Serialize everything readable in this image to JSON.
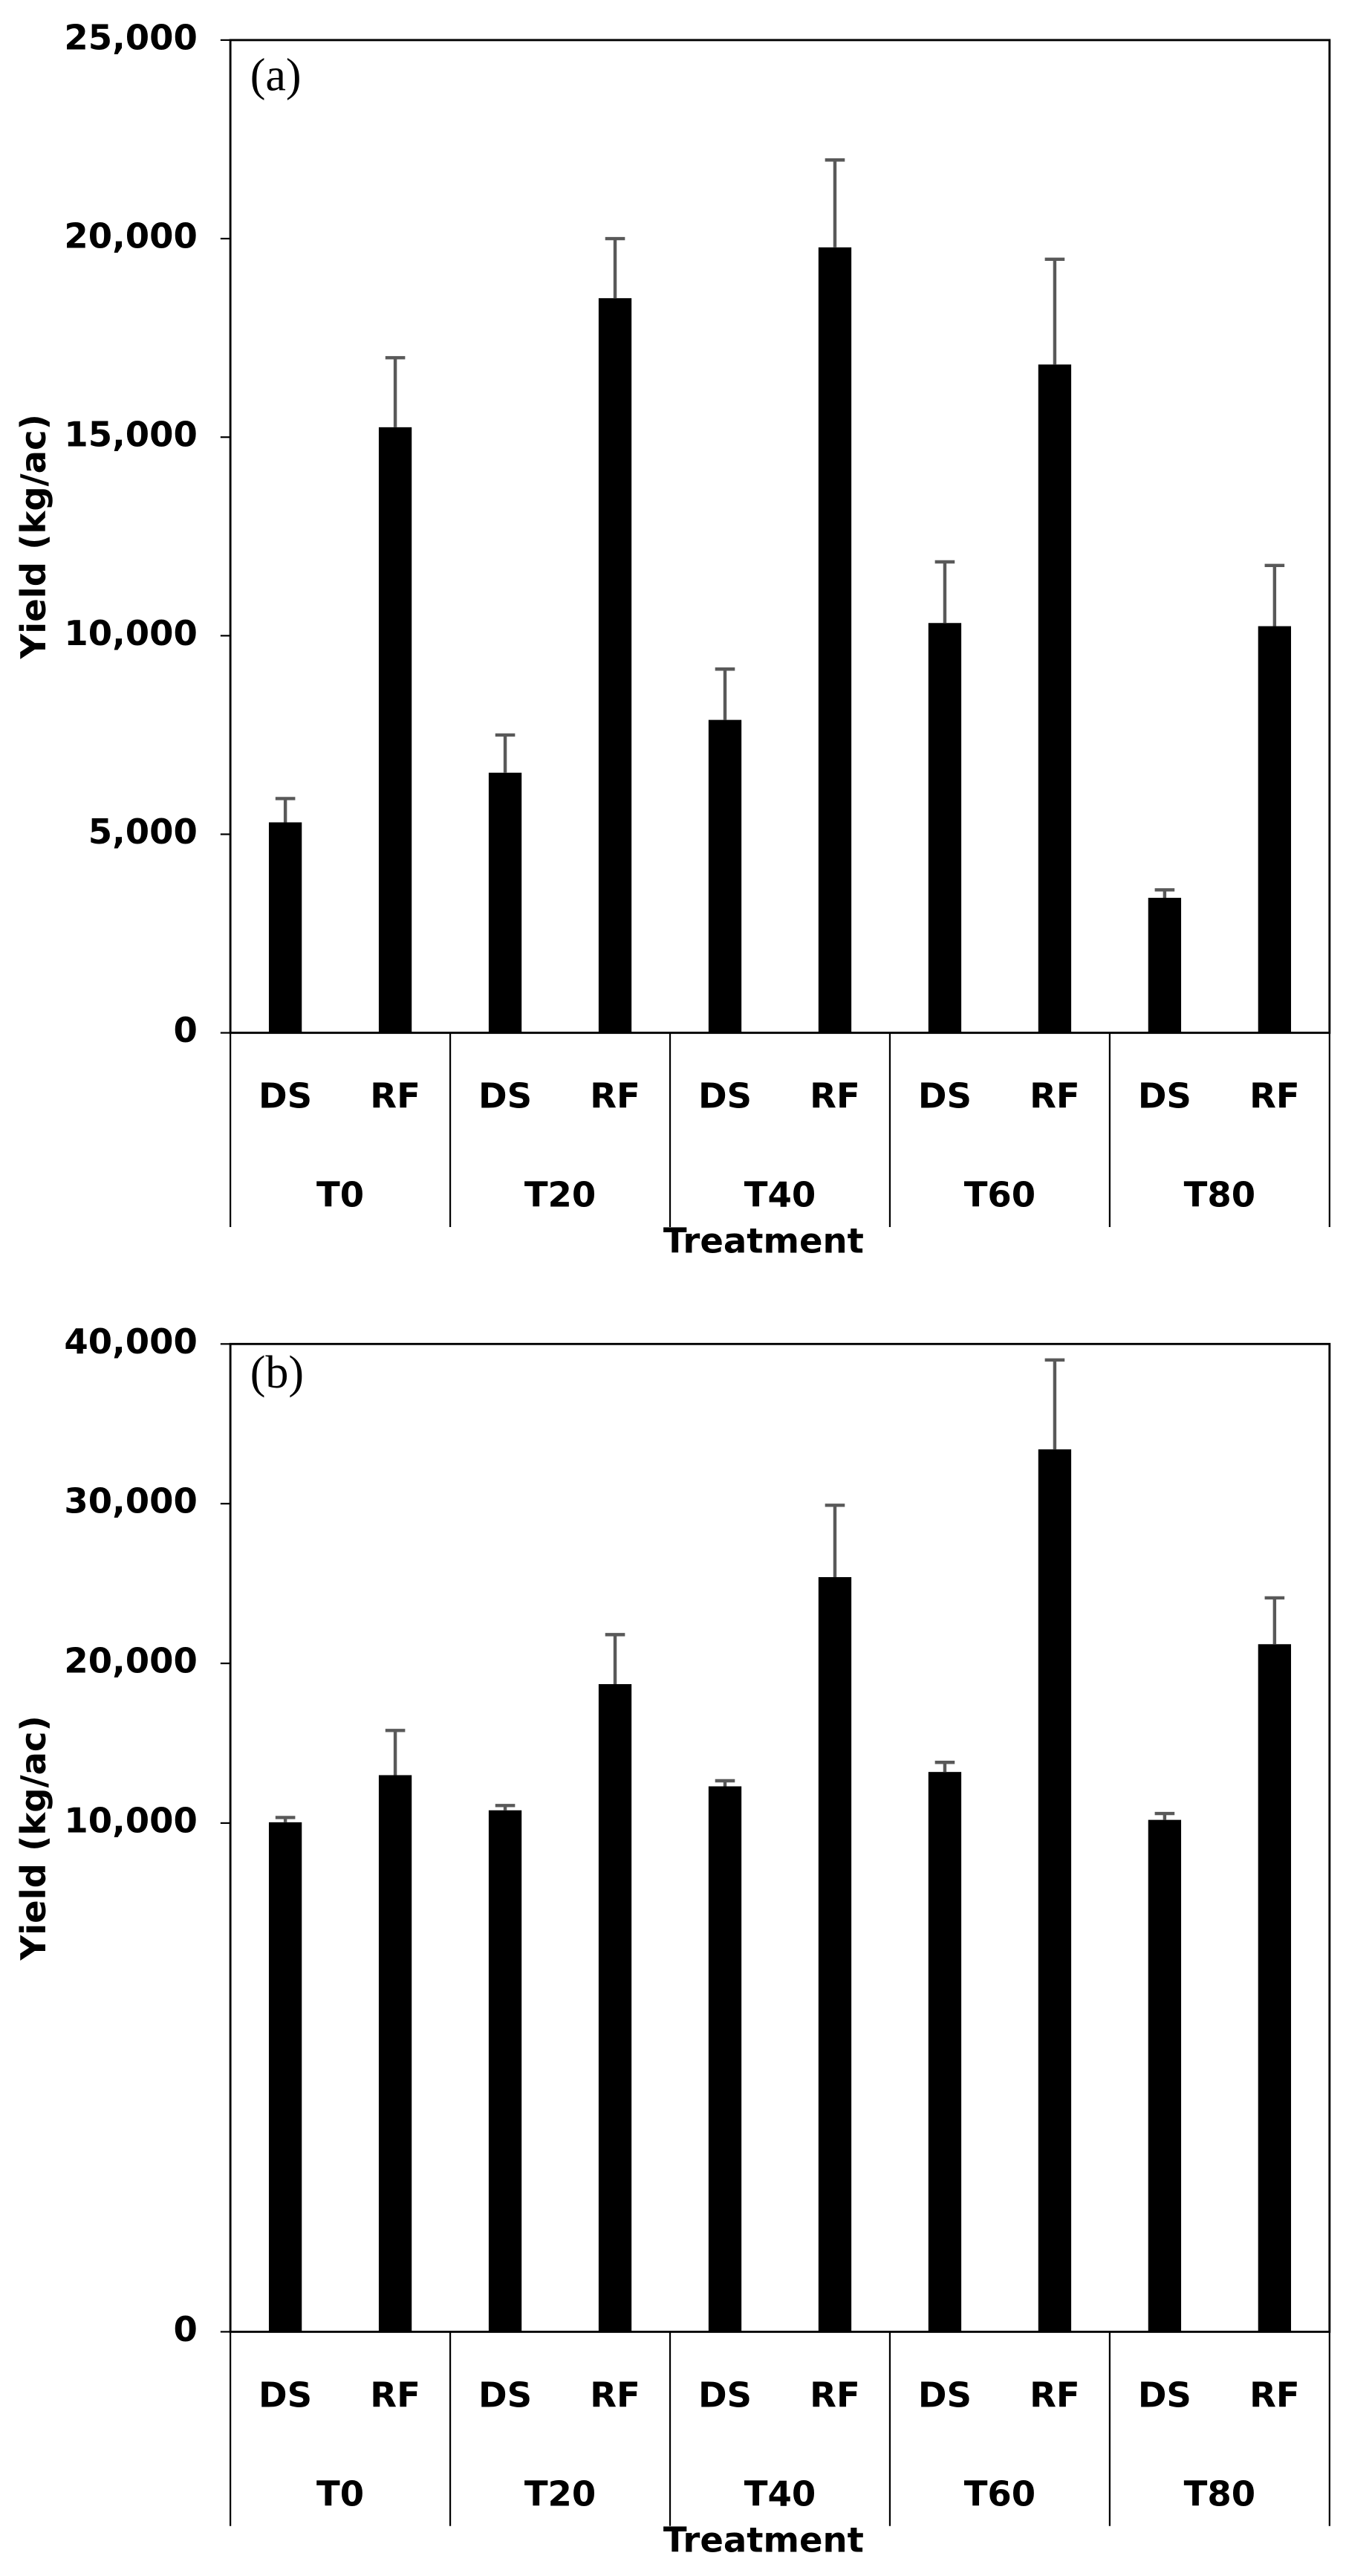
{
  "chart_data": [
    {
      "type": "bar",
      "title": "(a)",
      "xlabel": "Treatment",
      "ylabel": "Yield (kg/ac)",
      "categories": [
        "T0",
        "T20",
        "T40",
        "T60",
        "T80"
      ],
      "series": [
        {
          "name": "DS",
          "color": "#000000",
          "values": [
            5300,
            6550,
            7880,
            10320,
            3400
          ],
          "errors": [
            600,
            950,
            1280,
            1540,
            200
          ]
        },
        {
          "name": "RF",
          "color": "#000000",
          "values": [
            15250,
            18500,
            19780,
            16830,
            10240
          ],
          "errors": [
            1750,
            1500,
            2200,
            2650,
            1530
          ]
        }
      ],
      "error_color": "#595959",
      "ylim": [
        0,
        25000
      ],
      "yticks": [
        0,
        {
          "value": 5000,
          "label": "5,000"
        },
        {
          "value": 10000,
          "label": "10,000"
        },
        {
          "value": 15000,
          "label": "15,000"
        },
        {
          "value": 20000,
          "label": "20,000"
        },
        {
          "value": 25000,
          "label": "25,000"
        }
      ]
    },
    {
      "type": "bar",
      "title": "(b)",
      "xlabel": "Treatment",
      "ylabel": "Yield (kg/ac)",
      "categories": [
        "T0",
        "T20",
        "T40",
        "T60",
        "T80"
      ],
      "series": [
        {
          "name": "DS",
          "color": "#000000",
          "values": [
            10050,
            10800,
            12300,
            13200,
            10200
          ],
          "errors": [
            300,
            300,
            350,
            600,
            400
          ]
        },
        {
          "name": "RF",
          "color": "#000000",
          "values": [
            13000,
            18700,
            25400,
            33400,
            21200
          ],
          "errors": [
            2800,
            3100,
            4500,
            5600,
            2900
          ]
        }
      ],
      "error_color": "#595959",
      "ylim": [
        0,
        40000
      ],
      "yticks": [
        0,
        {
          "value": 10000,
          "label": "10,000"
        },
        {
          "value": 20000,
          "label": "20,000"
        },
        {
          "value": 30000,
          "label": "30,000"
        },
        {
          "value": 40000,
          "label": "40,000"
        }
      ]
    }
  ]
}
